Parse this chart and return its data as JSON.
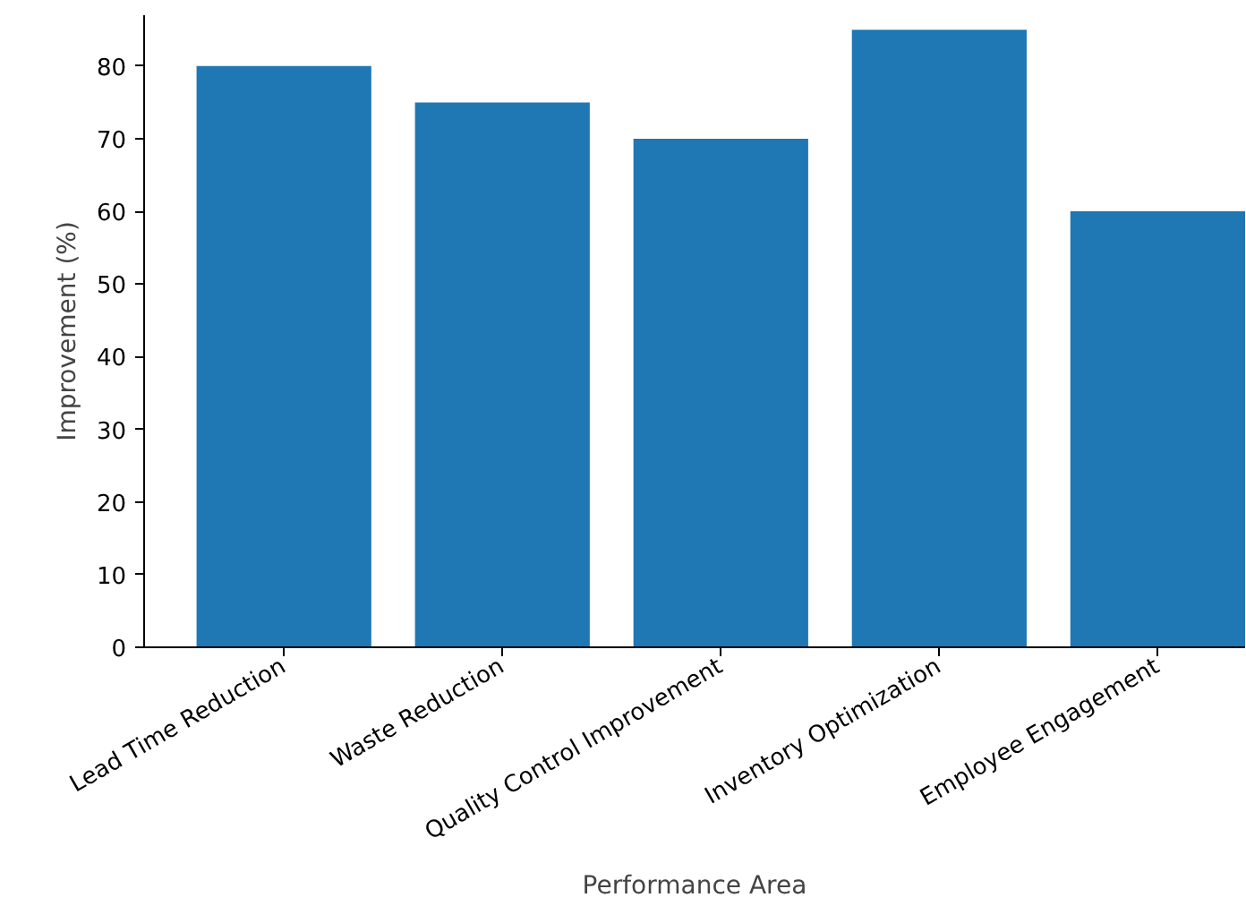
{
  "chart_data": {
    "type": "bar",
    "xlabel": "Performance Area",
    "ylabel": "Improvement (%)",
    "categories": [
      "Lead Time Reduction",
      "Waste Reduction",
      "Quality Control Improvement",
      "Inventory Optimization",
      "Employee Engagement"
    ],
    "values": [
      80,
      75,
      70,
      85,
      60
    ],
    "color": "#1f77b4",
    "ylim": [
      0,
      87
    ],
    "yticks": [
      0,
      10,
      20,
      30,
      40,
      50,
      60,
      70,
      80
    ],
    "grid": false
  }
}
